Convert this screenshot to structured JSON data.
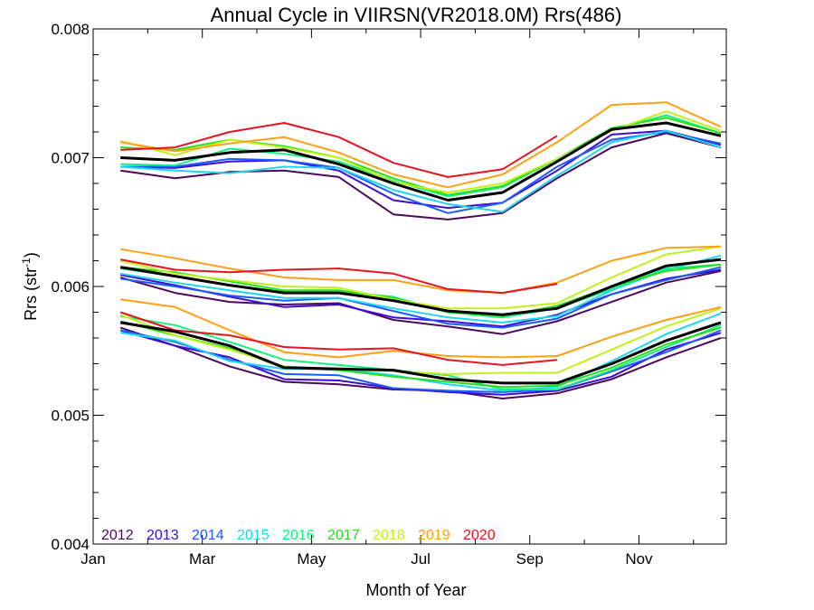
{
  "chart_data": {
    "type": "line",
    "title": "Annual Cycle in VIIRSN(VR2018.0M) Rrs(486)",
    "xlabel": "Month of Year",
    "ylabel": "Rrs (str⁻¹)",
    "ylabel_base": "Rrs (str",
    "ylabel_sup": "-1",
    "ylabel_close": ")",
    "xlim": [
      1,
      12.6
    ],
    "ylim": [
      0.004,
      0.008
    ],
    "xticks": [
      {
        "value": 1,
        "label": "Jan"
      },
      {
        "value": 3,
        "label": "Mar"
      },
      {
        "value": 5,
        "label": "May"
      },
      {
        "value": 7,
        "label": "Jul"
      },
      {
        "value": 9,
        "label": "Sep"
      },
      {
        "value": 11,
        "label": "Nov"
      }
    ],
    "yticks": [
      {
        "value": 0.004,
        "label": "0.004"
      },
      {
        "value": 0.005,
        "label": "0.005"
      },
      {
        "value": 0.006,
        "label": "0.006"
      },
      {
        "value": 0.007,
        "label": "0.007"
      },
      {
        "value": 0.008,
        "label": "0.008"
      }
    ],
    "grid": false,
    "legend_position": "bottom-left",
    "x": [
      1.5,
      2.5,
      3.5,
      4.5,
      5.5,
      6.5,
      7.5,
      8.5,
      9.5,
      10.5,
      11.5,
      12.5
    ],
    "series": [
      {
        "name": "2012",
        "color": "#4b0a5c",
        "groups": [
          [
            0.0069,
            0.00684,
            0.00689,
            0.0069,
            0.00685,
            0.00656,
            0.00652,
            0.00657,
            0.00684,
            0.00708,
            0.00719,
            0.00708
          ],
          [
            0.00607,
            0.00595,
            0.00588,
            0.00586,
            0.00587,
            0.00574,
            0.00569,
            0.00563,
            0.00573,
            0.00588,
            0.00603,
            0.00612
          ],
          [
            0.00568,
            0.00554,
            0.00538,
            0.00526,
            0.00524,
            0.0052,
            0.00519,
            0.00513,
            0.00517,
            0.00528,
            0.00545,
            0.0056
          ]
        ]
      },
      {
        "name": "2013",
        "color": "#3a0ed6",
        "groups": [
          [
            0.00693,
            0.00692,
            0.00697,
            0.00698,
            0.0069,
            0.00667,
            0.00661,
            0.00665,
            0.0069,
            0.00718,
            0.00721,
            0.0071
          ],
          [
            0.00609,
            0.00601,
            0.00592,
            0.00584,
            0.00586,
            0.00576,
            0.00573,
            0.00569,
            0.00578,
            0.00594,
            0.00606,
            0.00613
          ],
          [
            0.00566,
            0.00554,
            0.00545,
            0.00528,
            0.00527,
            0.00521,
            0.00518,
            0.00516,
            0.00519,
            0.0053,
            0.00551,
            0.00564
          ]
        ]
      },
      {
        "name": "2014",
        "color": "#1e5aff",
        "groups": [
          [
            0.00693,
            0.00693,
            0.00699,
            0.00698,
            0.00692,
            0.00672,
            0.00657,
            0.00665,
            0.00693,
            0.00714,
            0.0072,
            0.00711
          ],
          [
            0.00606,
            0.006,
            0.00593,
            0.00589,
            0.00591,
            0.00581,
            0.00571,
            0.00568,
            0.00575,
            0.00594,
            0.00605,
            0.00615
          ],
          [
            0.00566,
            0.00557,
            0.00543,
            0.00532,
            0.00531,
            0.00521,
            0.00519,
            0.00518,
            0.0052,
            0.00534,
            0.00549,
            0.00566
          ]
        ]
      },
      {
        "name": "2015",
        "color": "#1ed6f0",
        "groups": [
          [
            0.00693,
            0.0069,
            0.00688,
            0.00693,
            0.00692,
            0.00675,
            0.00664,
            0.00658,
            0.00686,
            0.00712,
            0.00721,
            0.00708
          ],
          [
            0.0061,
            0.00603,
            0.00597,
            0.00591,
            0.00591,
            0.00583,
            0.00576,
            0.00572,
            0.00577,
            0.00597,
            0.00613,
            0.00624
          ],
          [
            0.00564,
            0.00558,
            0.00542,
            0.00536,
            0.00536,
            0.00531,
            0.00524,
            0.00519,
            0.00522,
            0.00542,
            0.00563,
            0.00579
          ]
        ]
      },
      {
        "name": "2016",
        "color": "#14f082",
        "groups": [
          [
            0.00695,
            0.00694,
            0.00707,
            0.00703,
            0.00697,
            0.00682,
            0.0067,
            0.00677,
            0.00699,
            0.00722,
            0.00733,
            0.00719
          ],
          [
            0.00614,
            0.00608,
            0.00601,
            0.00596,
            0.00596,
            0.00592,
            0.0058,
            0.00576,
            0.00583,
            0.00598,
            0.00614,
            0.00617
          ],
          [
            0.00577,
            0.0057,
            0.00557,
            0.00543,
            0.00539,
            0.00535,
            0.00531,
            0.0052,
            0.0052,
            0.00535,
            0.00553,
            0.0057
          ]
        ]
      },
      {
        "name": "2017",
        "color": "#28e01a",
        "groups": [
          [
            0.00708,
            0.00706,
            0.00714,
            0.00709,
            0.007,
            0.00684,
            0.00671,
            0.00678,
            0.00699,
            0.00723,
            0.00731,
            0.00719
          ],
          [
            0.00615,
            0.00611,
            0.00604,
            0.00597,
            0.00597,
            0.00591,
            0.0058,
            0.00577,
            0.00585,
            0.006,
            0.00612,
            0.00617
          ],
          [
            0.00573,
            0.00562,
            0.00552,
            0.00537,
            0.00535,
            0.0053,
            0.00526,
            0.00522,
            0.00523,
            0.00537,
            0.00555,
            0.00568
          ]
        ]
      },
      {
        "name": "2018",
        "color": "#c0f01e",
        "groups": [
          [
            0.00713,
            0.00702,
            0.00714,
            0.00708,
            0.007,
            0.00681,
            0.00673,
            0.0068,
            0.00699,
            0.00721,
            0.00736,
            0.00721
          ],
          [
            0.0062,
            0.0061,
            0.00605,
            0.006,
            0.00599,
            0.0059,
            0.00583,
            0.00583,
            0.00587,
            0.00607,
            0.00625,
            0.00631
          ],
          [
            0.00578,
            0.00562,
            0.00551,
            0.00538,
            0.00536,
            0.00534,
            0.00532,
            0.00533,
            0.00533,
            0.00551,
            0.00569,
            0.00583
          ]
        ]
      },
      {
        "name": "2019",
        "color": "#ffa014",
        "groups": [
          [
            0.00712,
            0.00705,
            0.00711,
            0.00716,
            0.00704,
            0.00687,
            0.00677,
            0.00687,
            0.00712,
            0.00741,
            0.00743,
            0.00724
          ],
          [
            0.00629,
            0.00622,
            0.00614,
            0.00607,
            0.00605,
            0.00605,
            0.00597,
            0.00595,
            0.00603,
            0.0062,
            0.0063,
            0.00631
          ],
          [
            0.0059,
            0.00584,
            0.00566,
            0.00549,
            0.00545,
            0.0055,
            0.00546,
            0.00545,
            0.00546,
            0.00561,
            0.00574,
            0.00584
          ]
        ]
      },
      {
        "name": "2020",
        "color": "#e6141e",
        "groups": [
          [
            0.00706,
            0.00708,
            0.0072,
            0.00727,
            0.00716,
            0.00696,
            0.00685,
            0.00691,
            0.00717
          ],
          [
            0.00621,
            0.00613,
            0.00611,
            0.00613,
            0.00614,
            0.0061,
            0.00598,
            0.00595,
            0.00602
          ],
          [
            0.0058,
            0.00566,
            0.00562,
            0.00553,
            0.00551,
            0.00552,
            0.00543,
            0.00539,
            0.00543
          ]
        ]
      },
      {
        "name": "",
        "color": "#000000",
        "groups": [
          [
            0.007,
            0.00698,
            0.00704,
            0.00706,
            0.00695,
            0.0068,
            0.00667,
            0.00673,
            0.00697,
            0.00722,
            0.00727,
            0.00717
          ],
          [
            0.00615,
            0.00608,
            0.00601,
            0.00595,
            0.00595,
            0.00589,
            0.00581,
            0.00578,
            0.00583,
            0.006,
            0.00616,
            0.00621
          ],
          [
            0.00572,
            0.00565,
            0.00554,
            0.00537,
            0.00536,
            0.00535,
            0.00528,
            0.00525,
            0.00525,
            0.0054,
            0.00558,
            0.00572
          ]
        ]
      }
    ]
  }
}
